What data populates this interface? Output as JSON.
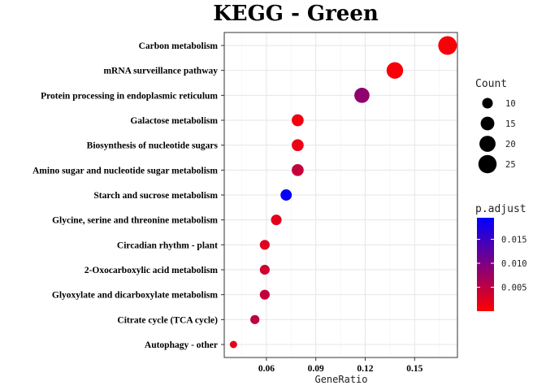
{
  "chart_data": {
    "type": "scatter",
    "title": "KEGG - Green",
    "xlabel": "GeneRatio",
    "ylabel": "",
    "xlim": [
      0.0344,
      0.176
    ],
    "xticks": [
      0.06,
      0.09,
      0.12,
      0.15
    ],
    "xtick_labels": [
      "0.06",
      "0.09",
      "0.12",
      "0.15"
    ],
    "grid": true,
    "legend_position": "right",
    "categories": [
      "Carbon metabolism",
      "mRNA surveillance pathway",
      "Protein processing in endoplasmic reticulum",
      "Galactose metabolism",
      "Biosynthesis of nucleotide sugars",
      "Amino sugar and nucleotide sugar metabolism",
      "Starch and sucrose metabolism",
      "Glycine, serine and threonine metabolism",
      "Circadian rhythm - plant",
      "2-Oxocarboxylic acid metabolism",
      "Glyoxylate and dicarboxylate metabolism",
      "Citrate cycle (TCA cycle)",
      "Autophagy - other"
    ],
    "points": [
      {
        "term": "Carbon metabolism",
        "gene_ratio": 0.17,
        "count": 26,
        "p_adjust": 0.0005
      },
      {
        "term": "mRNA surveillance pathway",
        "gene_ratio": 0.138,
        "count": 21,
        "p_adjust": 0.0006
      },
      {
        "term": "Protein processing in endoplasmic reticulum",
        "gene_ratio": 0.118,
        "count": 18,
        "p_adjust": 0.0085
      },
      {
        "term": "Galactose metabolism",
        "gene_ratio": 0.079,
        "count": 12,
        "p_adjust": 0.001
      },
      {
        "term": "Biosynthesis of nucleotide sugars",
        "gene_ratio": 0.079,
        "count": 12,
        "p_adjust": 0.0015
      },
      {
        "term": "Amino sugar and nucleotide sugar metabolism",
        "gene_ratio": 0.079,
        "count": 12,
        "p_adjust": 0.0045
      },
      {
        "term": "Starch and sucrose metabolism",
        "gene_ratio": 0.072,
        "count": 11,
        "p_adjust": 0.019
      },
      {
        "term": "Glycine, serine and threonine metabolism",
        "gene_ratio": 0.066,
        "count": 10,
        "p_adjust": 0.002
      },
      {
        "term": "Circadian rhythm - plant",
        "gene_ratio": 0.059,
        "count": 9,
        "p_adjust": 0.0025
      },
      {
        "term": "2-Oxocarboxylic acid metabolism",
        "gene_ratio": 0.059,
        "count": 9,
        "p_adjust": 0.0035
      },
      {
        "term": "Glyoxylate and dicarboxylate metabolism",
        "gene_ratio": 0.059,
        "count": 9,
        "p_adjust": 0.0045
      },
      {
        "term": "Citrate cycle (TCA cycle)",
        "gene_ratio": 0.053,
        "count": 8,
        "p_adjust": 0.005
      },
      {
        "term": "Autophagy - other",
        "gene_ratio": 0.04,
        "count": 6,
        "p_adjust": 0.002
      }
    ],
    "size_legend": {
      "title": "Count",
      "values": [
        10,
        15,
        20,
        25
      ],
      "labels": [
        "10",
        "15",
        "20",
        "25"
      ]
    },
    "color_legend": {
      "title": "p.adjust",
      "range": [
        0,
        0.0195
      ],
      "ticks": [
        0.015,
        0.01,
        0.005
      ],
      "tick_labels": [
        "0.015",
        "0.010",
        "0.005"
      ],
      "low_color": "#ff0000",
      "high_color": "#0000ff"
    }
  }
}
